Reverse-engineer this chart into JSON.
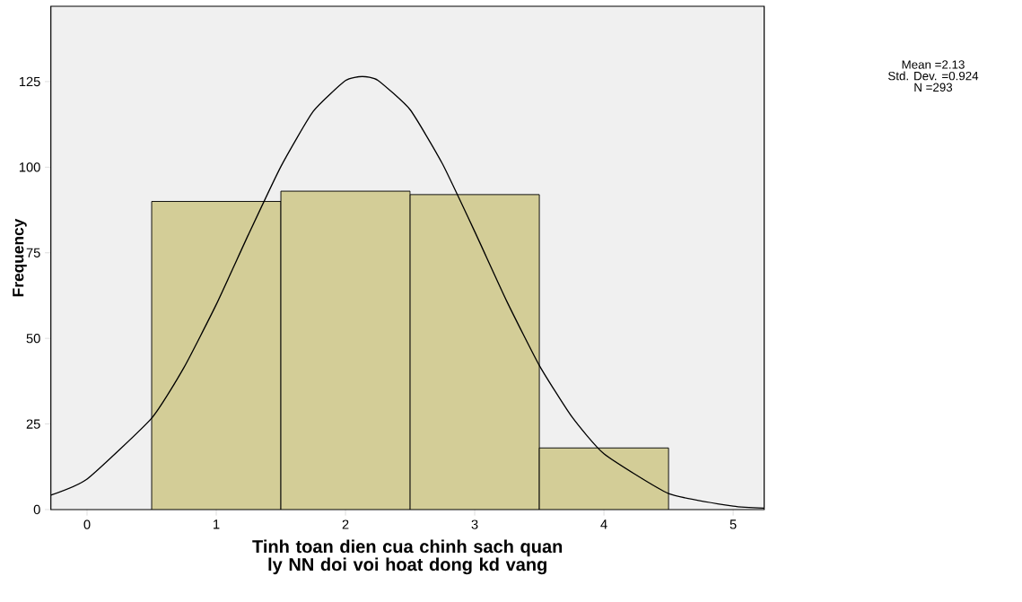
{
  "chart_data": {
    "type": "histogram",
    "xlabel": "Tinh toan dien cua chinh sach quan ly NN doi voi hoat dong kd vang",
    "ylabel": "Frequency",
    "bins": [
      0.5,
      1.5,
      2.5,
      3.5,
      4.5
    ],
    "values": [
      90,
      93,
      92,
      18
    ],
    "color": "#d3cd97",
    "xlim": [
      -0.28,
      5.24
    ],
    "ylim": [
      0,
      147
    ],
    "xticks": [
      0,
      1,
      2,
      3,
      4,
      5
    ],
    "yticks": [
      0,
      25,
      50,
      75,
      100,
      125
    ],
    "annotations": [
      "Mean =2.13",
      "Std. Dev. =0.924",
      "N =293"
    ],
    "series": [
      {
        "type": "line",
        "color": "#000000",
        "x": [
          -0.28,
          0,
          0.5,
          0.75,
          1,
          1.25,
          1.5,
          1.75,
          2,
          2.13,
          2.25,
          2.5,
          2.75,
          3,
          3.25,
          3.5,
          3.75,
          4,
          4.5,
          5,
          5.24
        ],
        "values": [
          4.2,
          8.9,
          26.7,
          41.5,
          59.9,
          80.4,
          100.2,
          116.3,
          125.3,
          126.5,
          125.4,
          116.8,
          101,
          81.2,
          60.7,
          42.1,
          27.2,
          16.3,
          4.7,
          1,
          0.4
        ]
      }
    ]
  }
}
